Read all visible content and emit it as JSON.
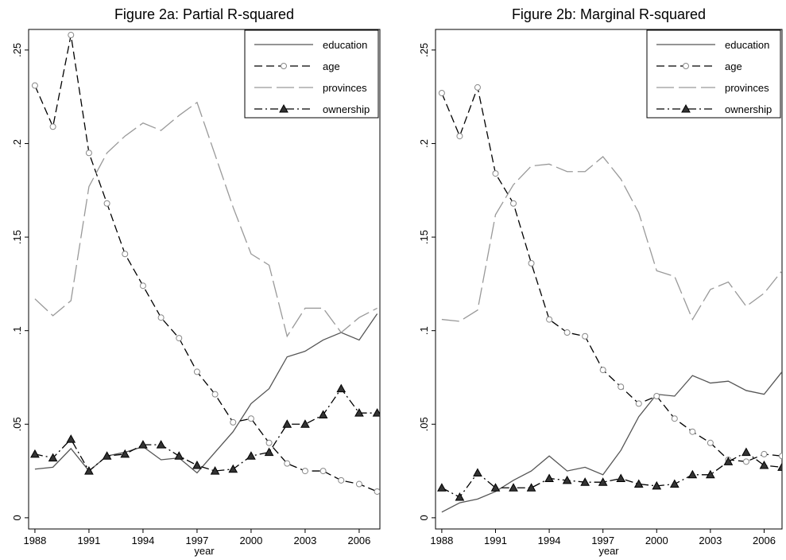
{
  "chart_data": [
    {
      "type": "line",
      "title": "Figure 2a: Partial R-squared",
      "xlabel": "year",
      "x": [
        1988,
        1989,
        1990,
        1991,
        1992,
        1993,
        1994,
        1995,
        1996,
        1997,
        1998,
        1999,
        2000,
        2001,
        2002,
        2003,
        2004,
        2005,
        2006,
        2007
      ],
      "xlim": [
        1987.65,
        2007.15
      ],
      "xticks": [
        1988,
        1991,
        1994,
        1997,
        2000,
        2003,
        2006
      ],
      "ylim": [
        -0.006,
        0.261
      ],
      "yticks": [
        0,
        {
          "value": 0.05,
          "label": ".05"
        },
        {
          "value": 0.1,
          "label": ".1"
        },
        {
          "value": 0.15,
          "label": ".15"
        },
        {
          "value": 0.2,
          "label": ".2"
        },
        {
          "value": 0.25,
          "label": ".25"
        }
      ],
      "legend": "top-right",
      "series": [
        {
          "name": "education",
          "color": "#555555",
          "dash": "solid",
          "marker": "none",
          "values": [
            0.026,
            0.027,
            0.037,
            0.025,
            0.033,
            0.035,
            0.038,
            0.031,
            0.032,
            0.024,
            0.035,
            0.046,
            0.061,
            0.069,
            0.086,
            0.089,
            0.095,
            0.099,
            0.095,
            0.109
          ]
        },
        {
          "name": "age",
          "color": "#000000",
          "dash": "dash",
          "marker": "circle",
          "values": [
            0.231,
            0.209,
            0.258,
            0.195,
            0.168,
            0.141,
            0.124,
            0.107,
            0.096,
            0.078,
            0.066,
            0.051,
            0.053,
            0.04,
            0.029,
            0.025,
            0.025,
            0.02,
            0.018,
            0.014
          ]
        },
        {
          "name": "provinces",
          "color": "#999999",
          "dash": "longdash",
          "marker": "none",
          "values": [
            0.117,
            0.108,
            0.116,
            0.177,
            0.195,
            0.204,
            0.211,
            0.207,
            0.215,
            0.222,
            0.194,
            0.166,
            0.141,
            0.135,
            0.097,
            0.112,
            0.112,
            0.099,
            0.107,
            0.112
          ]
        },
        {
          "name": "ownership",
          "color": "#000000",
          "dash": "dashdot",
          "marker": "triangle",
          "values": [
            0.034,
            0.032,
            0.042,
            0.025,
            0.033,
            0.034,
            0.039,
            0.039,
            0.033,
            0.028,
            0.025,
            0.026,
            0.033,
            0.035,
            0.05,
            0.05,
            0.055,
            0.069,
            0.056,
            0.056
          ]
        }
      ]
    },
    {
      "type": "line",
      "title": "Figure 2b: Marginal R-squared",
      "xlabel": "year",
      "x": [
        1988,
        1989,
        1990,
        1991,
        1992,
        1993,
        1994,
        1995,
        1996,
        1997,
        1998,
        1999,
        2000,
        2001,
        2002,
        2003,
        2004,
        2005,
        2006,
        2007
      ],
      "xlim": [
        1987.65,
        2007.0
      ],
      "xticks": [
        1988,
        1991,
        1994,
        1997,
        2000,
        2003,
        2006
      ],
      "ylim": [
        -0.006,
        0.261
      ],
      "yticks": [
        0,
        {
          "value": 0.05,
          "label": ".05"
        },
        {
          "value": 0.1,
          "label": ".1"
        },
        {
          "value": 0.15,
          "label": ".15"
        },
        {
          "value": 0.2,
          "label": ".2"
        },
        {
          "value": 0.25,
          "label": ".25"
        }
      ],
      "legend": "top-right",
      "series": [
        {
          "name": "education",
          "color": "#555555",
          "dash": "solid",
          "marker": "none",
          "values": [
            0.003,
            0.008,
            0.01,
            0.014,
            0.02,
            0.025,
            0.033,
            0.025,
            0.027,
            0.023,
            0.036,
            0.054,
            0.066,
            0.065,
            0.076,
            0.072,
            0.073,
            0.068,
            0.066,
            0.078
          ]
        },
        {
          "name": "age",
          "color": "#000000",
          "dash": "dash",
          "marker": "circle",
          "values": [
            0.227,
            0.204,
            0.23,
            0.184,
            0.168,
            0.136,
            0.106,
            0.099,
            0.097,
            0.079,
            0.07,
            0.061,
            0.065,
            0.053,
            0.046,
            0.04,
            0.031,
            0.03,
            0.034,
            0.033
          ]
        },
        {
          "name": "provinces",
          "color": "#999999",
          "dash": "longdash",
          "marker": "none",
          "values": [
            0.106,
            0.105,
            0.111,
            0.162,
            0.178,
            0.188,
            0.189,
            0.185,
            0.185,
            0.193,
            0.181,
            0.163,
            0.132,
            0.129,
            0.106,
            0.122,
            0.126,
            0.113,
            0.12,
            0.132
          ]
        },
        {
          "name": "ownership",
          "color": "#000000",
          "dash": "dashdot",
          "marker": "triangle",
          "values": [
            0.016,
            0.011,
            0.024,
            0.016,
            0.016,
            0.016,
            0.021,
            0.02,
            0.019,
            0.019,
            0.021,
            0.018,
            0.017,
            0.018,
            0.023,
            0.023,
            0.03,
            0.035,
            0.028,
            0.027
          ]
        }
      ]
    }
  ]
}
